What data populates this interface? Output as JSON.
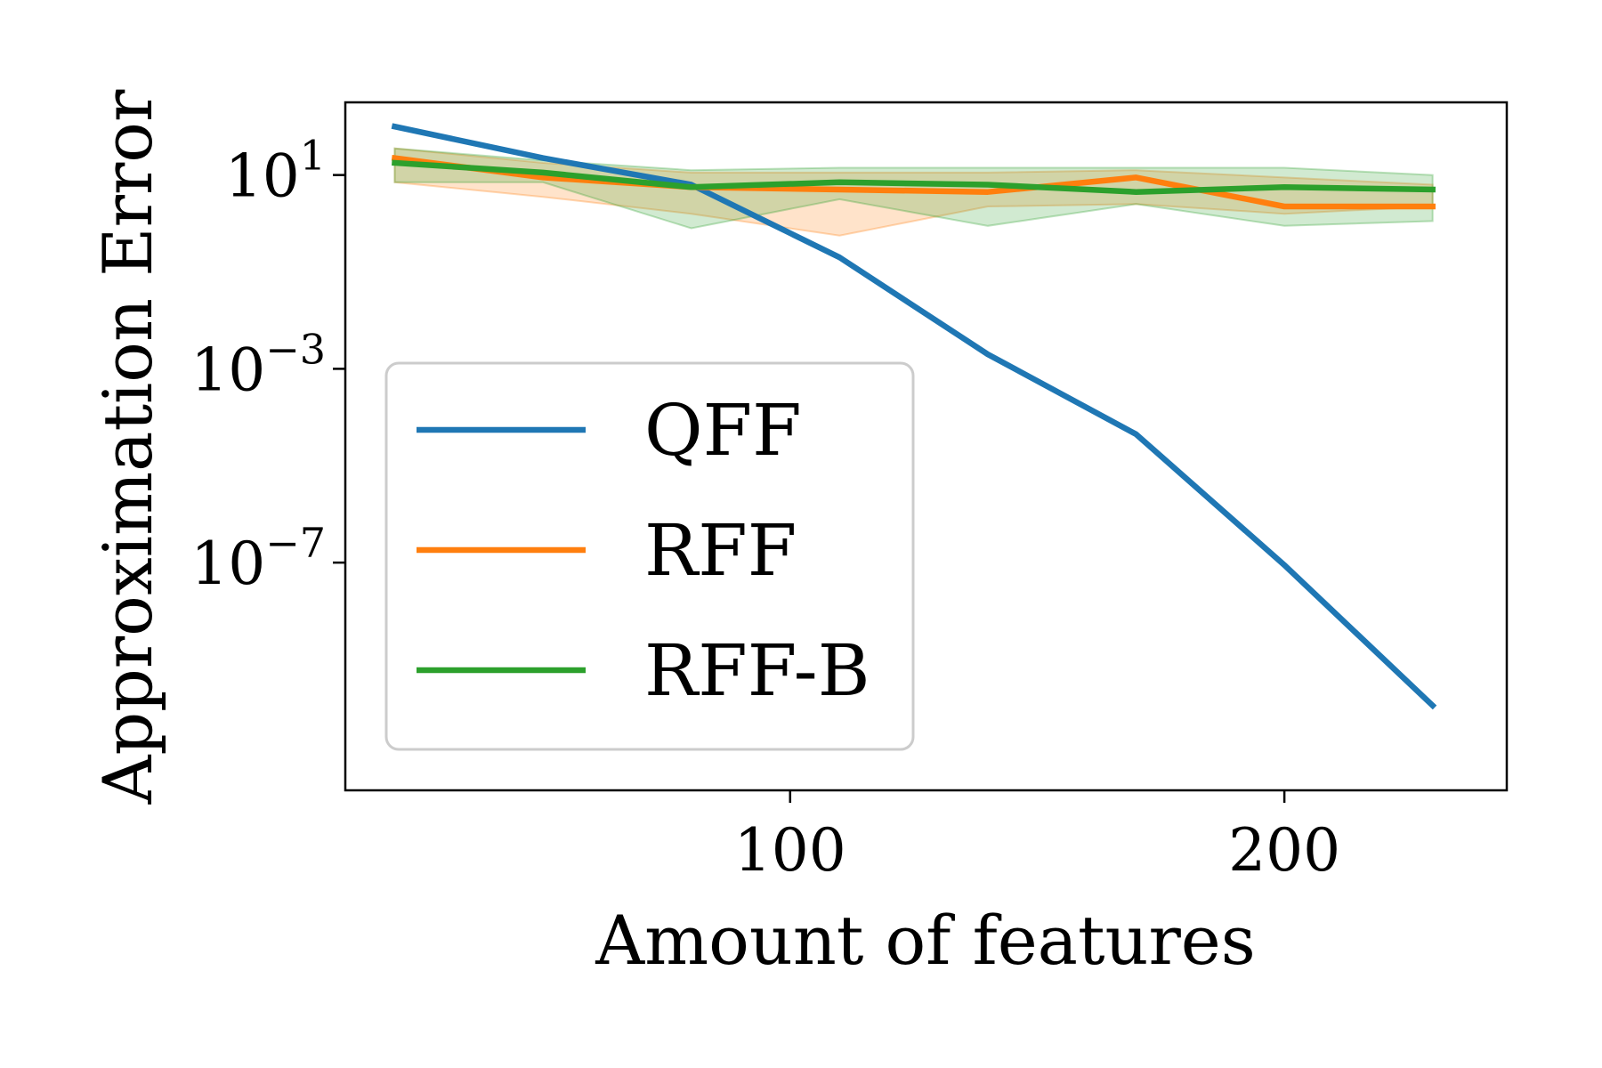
{
  "chart_data": {
    "type": "line",
    "xlabel": "Amount of features",
    "ylabel": "Approximation Error",
    "xlim": [
      10,
      245
    ],
    "ylim_log10": [
      -11.7,
      2.5
    ],
    "yscale": "log",
    "grid": false,
    "legend_position": "center-left",
    "x_ticks": [
      {
        "value": 100,
        "label": "100"
      },
      {
        "value": 200,
        "label": "200"
      }
    ],
    "y_ticks": [
      {
        "exponent": 1,
        "base": "10",
        "power": "1"
      },
      {
        "exponent": -3,
        "base": "10",
        "power": "−3"
      },
      {
        "exponent": -7,
        "base": "10",
        "power": "−7"
      }
    ],
    "x": [
      20,
      50,
      80,
      110,
      140,
      170,
      200,
      230
    ],
    "series": [
      {
        "name": "QFF",
        "color": "#1f77b4",
        "log10_values": [
          2.0,
          1.35,
          0.8,
          -0.7,
          -2.7,
          -4.35,
          -7.05,
          -9.95
        ]
      },
      {
        "name": "RFF",
        "color": "#ff7f0e",
        "log10_values": [
          1.35,
          0.95,
          0.75,
          0.7,
          0.65,
          0.95,
          0.35,
          0.35
        ],
        "band_lower_log10": [
          0.85,
          0.55,
          0.2,
          -0.25,
          0.35,
          0.4,
          0.2,
          0.35
        ],
        "band_upper_log10": [
          1.55,
          1.25,
          1.05,
          1.05,
          1.05,
          1.1,
          0.95,
          0.8
        ]
      },
      {
        "name": "RFF-B",
        "color": "#2ca02c",
        "log10_values": [
          1.25,
          1.05,
          0.75,
          0.85,
          0.8,
          0.65,
          0.75,
          0.7
        ],
        "band_lower_log10": [
          0.85,
          0.85,
          -0.1,
          0.5,
          -0.05,
          0.4,
          -0.05,
          0.05
        ],
        "band_upper_log10": [
          1.55,
          1.3,
          1.1,
          1.15,
          1.15,
          1.15,
          1.15,
          1.0
        ]
      }
    ]
  }
}
